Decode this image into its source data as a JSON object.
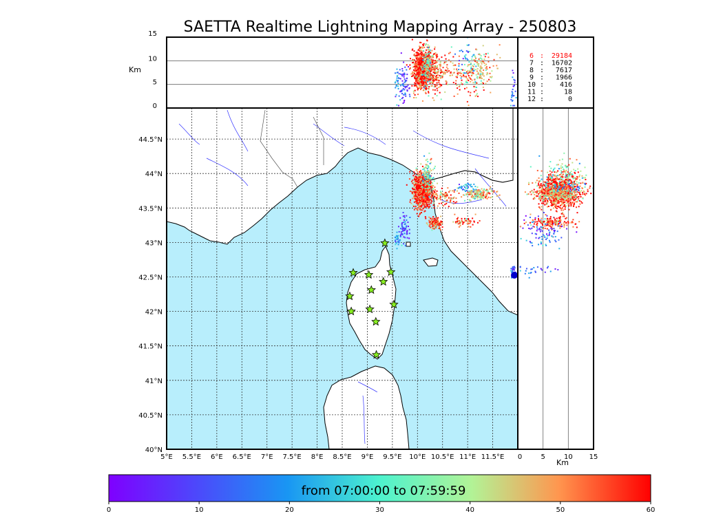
{
  "title": "SAETTA Realtime Lightning Mapping Array - 250803",
  "colors": {
    "sea": "#b8eefc",
    "land": "#ffffff",
    "rivers": "#3333ff",
    "borders": "#555555",
    "grid": "#333333",
    "star_fill": "#88ee22",
    "highlight": "#ff0000"
  },
  "map": {
    "lon_ticks": [
      "5°E",
      "5.5°E",
      "6°E",
      "6.5°E",
      "7°E",
      "7.5°E",
      "8°E",
      "8.5°E",
      "9°E",
      "9.5°E",
      "10°E",
      "10.5°E",
      "11°E",
      "11.5°E"
    ],
    "lat_ticks": [
      "40°N",
      "40.5°N",
      "41°N",
      "41.5°N",
      "42°N",
      "42.5°N",
      "43°N",
      "43.5°N",
      "44°N",
      "44.5°N"
    ],
    "lon_range": [
      5,
      12
    ],
    "lat_range": [
      40,
      44.95
    ],
    "stations": [
      {
        "lon": 9.35,
        "lat": 42.99
      },
      {
        "lon": 8.72,
        "lat": 42.56
      },
      {
        "lon": 9.03,
        "lat": 42.53
      },
      {
        "lon": 9.47,
        "lat": 42.57
      },
      {
        "lon": 9.32,
        "lat": 42.43
      },
      {
        "lon": 9.08,
        "lat": 42.31
      },
      {
        "lon": 8.65,
        "lat": 42.22
      },
      {
        "lon": 9.53,
        "lat": 42.1
      },
      {
        "lon": 8.68,
        "lat": 42.0
      },
      {
        "lon": 9.05,
        "lat": 42.03
      },
      {
        "lon": 9.17,
        "lat": 41.85
      },
      {
        "lon": 9.18,
        "lat": 41.37
      }
    ]
  },
  "alt_panel": {
    "ylabel": "Km",
    "yticks": [
      "0",
      "5",
      "10",
      "15"
    ],
    "yrange": [
      0,
      15
    ]
  },
  "side_panel": {
    "xlabel": "Km",
    "xticks": [
      "0",
      "5",
      "10",
      "15"
    ],
    "xrange": [
      0,
      15
    ]
  },
  "counts": [
    {
      "label": "6",
      "value": "29184",
      "highlight": true
    },
    {
      "label": "7",
      "value": "16702",
      "highlight": false
    },
    {
      "label": "8",
      "value": "7617",
      "highlight": false
    },
    {
      "label": "9",
      "value": "1966",
      "highlight": false
    },
    {
      "label": "10",
      "value": "416",
      "highlight": false
    },
    {
      "label": "11",
      "value": "18",
      "highlight": false
    },
    {
      "label": "12",
      "value": "0",
      "highlight": false
    }
  ],
  "colorbar": {
    "label": "from 07:00:00 to 07:59:59",
    "ticks": [
      "0",
      "10",
      "20",
      "30",
      "40",
      "50",
      "60"
    ],
    "range": [
      0,
      60
    ]
  },
  "chart_data": {
    "type": "scatter",
    "clusters": [
      {
        "lon": 10.1,
        "lat": 43.75,
        "alt": 8,
        "t": 58,
        "n": 900,
        "slon": 0.09,
        "slat": 0.12
      },
      {
        "lon": 10.2,
        "lat": 43.95,
        "alt": 9,
        "t": 35,
        "n": 120,
        "slon": 0.08,
        "slat": 0.12
      },
      {
        "lon": 10.35,
        "lat": 43.28,
        "alt": 7,
        "t": 55,
        "n": 120,
        "slon": 0.07,
        "slat": 0.04
      },
      {
        "lon": 9.75,
        "lat": 43.2,
        "alt": 5,
        "t": 10,
        "n": 60,
        "slon": 0.05,
        "slat": 0.1
      },
      {
        "lon": 9.6,
        "lat": 43.05,
        "alt": 6,
        "t": 22,
        "n": 30,
        "slon": 0.04,
        "slat": 0.05
      },
      {
        "lon": 10.55,
        "lat": 43.65,
        "alt": 8,
        "t": 52,
        "n": 80,
        "slon": 0.12,
        "slat": 0.06
      },
      {
        "lon": 11.25,
        "lat": 43.7,
        "alt": 8,
        "t": 45,
        "n": 160,
        "slon": 0.15,
        "slat": 0.04
      },
      {
        "lon": 10.95,
        "lat": 43.8,
        "alt": 9,
        "t": 20,
        "n": 40,
        "slon": 0.1,
        "slat": 0.03
      },
      {
        "lon": 10.95,
        "lat": 43.3,
        "alt": 6,
        "t": 55,
        "n": 50,
        "slon": 0.1,
        "slat": 0.04
      },
      {
        "lon": 11.9,
        "lat": 42.6,
        "alt": 4,
        "t": 15,
        "n": 25,
        "slon": 0.03,
        "slat": 0.03
      }
    ]
  }
}
